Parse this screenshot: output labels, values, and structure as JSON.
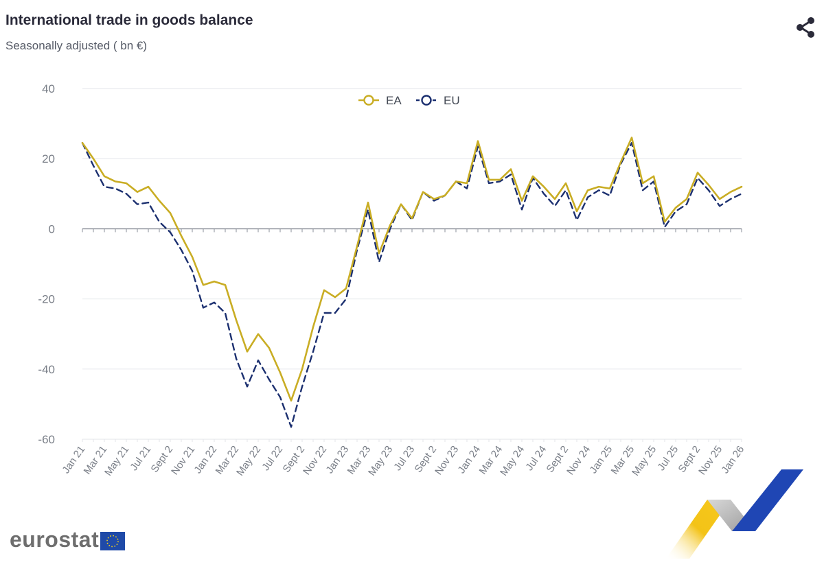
{
  "header": {
    "title": "International trade in goods balance",
    "subtitle": "Seasonally adjusted ( bn €)"
  },
  "share": {
    "icon": "share-icon"
  },
  "logo": {
    "text": "eurostat",
    "flag_icon": "eu-flag-icon"
  },
  "colors": {
    "ea": "#c9ad24",
    "eu": "#1c3070",
    "grid": "#e3e6ea",
    "axis": "#8a8f98",
    "tick_text": "#7a7f88"
  },
  "chart_data": {
    "type": "line",
    "title": "International trade in goods balance",
    "subtitle": "Seasonally adjusted ( bn €)",
    "ylim": [
      -60,
      40
    ],
    "yticks": [
      40,
      20,
      0,
      -20,
      -40,
      -60
    ],
    "grid": true,
    "legend_position": "top-center",
    "x_tick_labels": [
      "Jan 21",
      "Mar 21",
      "May 21",
      "Jul 21",
      "Sept 2",
      "Nov 21",
      "Jan 22",
      "Mar 22",
      "May 22",
      "Jul 22",
      "Sept 2",
      "Nov 22",
      "Jan 23",
      "Mar 23",
      "May 23",
      "Jul 23",
      "Sept 2",
      "Nov 23",
      "Jan 24",
      "Mar 24",
      "May 24",
      "Jul 24",
      "Sept 2",
      "Nov 24",
      "Jan 25",
      "Mar 25",
      "May 25",
      "Jul 25",
      "Sept 2",
      "Nov 25",
      "Jan 26"
    ],
    "series": [
      {
        "name": "EA",
        "style": "solid",
        "values": [
          24.5,
          20,
          15,
          13.5,
          13,
          10.5,
          12,
          8,
          4.5,
          -2,
          -8,
          -16,
          -15,
          -16,
          -26,
          -35,
          -30,
          -34,
          -41,
          -49,
          -40,
          -28,
          -17.5,
          -19.5,
          -17,
          -5,
          7.5,
          -7,
          1,
          7,
          3,
          10.5,
          8.5,
          9.5,
          13.5,
          13,
          25,
          14,
          14,
          17,
          8,
          15,
          12,
          8.5,
          13,
          5,
          11,
          12,
          11.5,
          19,
          26,
          13,
          15,
          2,
          6,
          8.5,
          16,
          12.5,
          8.5,
          10.5,
          12
        ]
      },
      {
        "name": "EU",
        "style": "dashed",
        "values": [
          24.5,
          18,
          12,
          11.5,
          10,
          7,
          7.5,
          2,
          -1,
          -6,
          -12,
          -22.5,
          -21,
          -24,
          -37,
          -45,
          -37.5,
          -43,
          -48,
          -56.5,
          -45,
          -35,
          -24,
          -24,
          -20,
          -6,
          5.5,
          -9.5,
          0,
          7,
          2.5,
          10.5,
          8,
          9.5,
          13.5,
          11.5,
          23.5,
          13,
          13.5,
          15.5,
          5.5,
          14.5,
          10,
          6.5,
          11,
          2.5,
          9,
          11,
          9.5,
          18.5,
          24.5,
          11,
          13.5,
          0.5,
          5,
          7,
          14.5,
          11,
          6.5,
          8.5,
          10
        ]
      }
    ]
  }
}
